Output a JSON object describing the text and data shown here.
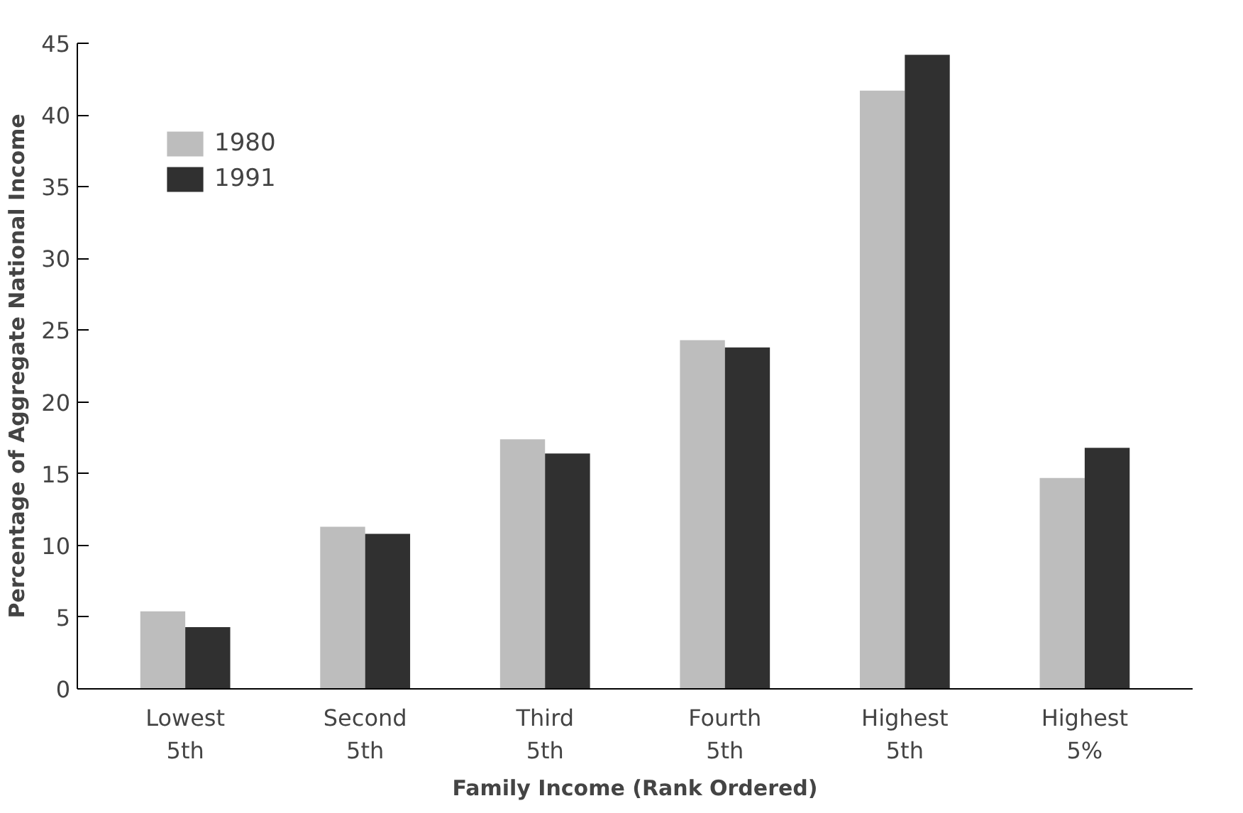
{
  "chart_data": {
    "type": "bar",
    "xlabel": "Family Income (Rank Ordered)",
    "ylabel": "Percentage of Aggregate National Income",
    "categories": [
      "Lowest\n5th",
      "Second\n5th",
      "Third\n5th",
      "Fourth\n5th",
      "Highest\n5th",
      "Highest\n5%"
    ],
    "series": [
      {
        "name": "1980",
        "color": "#bdbdbd",
        "values": [
          5.4,
          11.3,
          17.4,
          24.3,
          41.7,
          14.7
        ]
      },
      {
        "name": "1991",
        "color": "#303030",
        "values": [
          4.3,
          10.8,
          16.4,
          23.8,
          44.2,
          16.8
        ]
      }
    ],
    "ylim": [
      0,
      45
    ],
    "yticks": [
      0,
      5,
      10,
      15,
      20,
      25,
      30,
      35,
      40,
      45
    ],
    "grid": false,
    "legend": "top left"
  }
}
